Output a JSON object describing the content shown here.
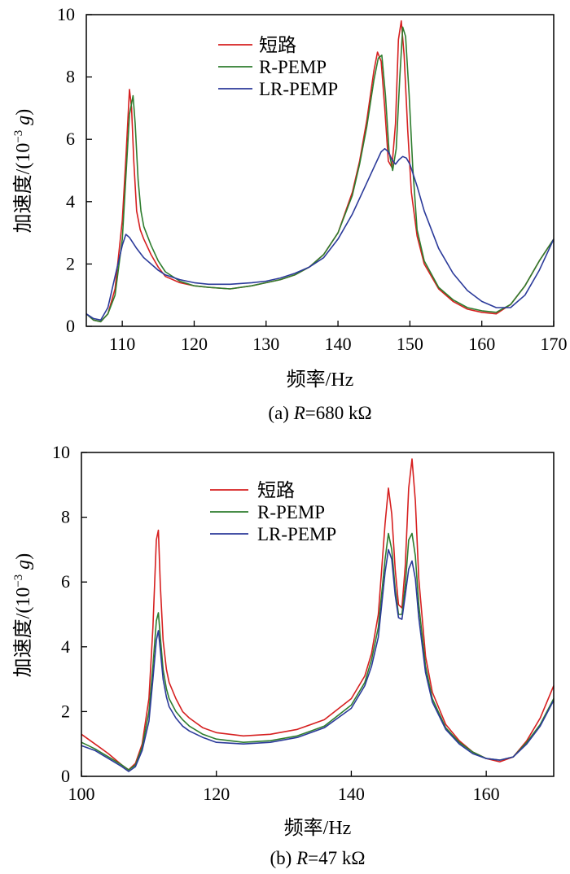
{
  "chart_data": [
    {
      "type": "line",
      "caption_prefix": "(a) ",
      "caption_var": "R",
      "caption_value": "=680 kΩ",
      "xlabel": "频率/Hz",
      "ylabel_main": "加速度/(10",
      "ylabel_exp": "−3",
      "ylabel_var": "g",
      "ylabel_close": ")",
      "xlim": [
        105,
        170
      ],
      "ylim": [
        0,
        10
      ],
      "xticks": [
        110,
        120,
        130,
        140,
        150,
        160,
        170
      ],
      "yticks": [
        0,
        2,
        4,
        6,
        8,
        10
      ],
      "legend_position": "top-center",
      "series": [
        {
          "name": "短路",
          "color": "#d62020",
          "x": [
            105,
            106,
            107,
            108,
            109,
            110,
            110.5,
            111,
            111.3,
            111.6,
            112,
            112.5,
            113,
            114,
            115,
            116,
            118,
            120,
            122,
            125,
            128,
            130,
            132,
            134,
            136,
            138,
            140,
            142,
            143,
            144,
            145,
            145.5,
            146,
            146.5,
            147,
            147.5,
            148,
            148.4,
            148.8,
            149.2,
            149.7,
            150.2,
            151,
            152,
            154,
            156,
            158,
            160,
            162,
            164,
            166,
            168,
            170
          ],
          "y": [
            0.4,
            0.2,
            0.15,
            0.4,
            1.2,
            3.4,
            5.4,
            7.6,
            7.0,
            5.3,
            3.7,
            3.1,
            2.8,
            2.3,
            1.9,
            1.6,
            1.4,
            1.3,
            1.25,
            1.2,
            1.3,
            1.4,
            1.5,
            1.65,
            1.9,
            2.3,
            3.0,
            4.3,
            5.3,
            6.6,
            8.2,
            8.8,
            8.5,
            7.0,
            5.3,
            5.1,
            6.5,
            9.2,
            9.8,
            8.7,
            6.3,
            4.3,
            2.9,
            2.0,
            1.2,
            0.8,
            0.55,
            0.45,
            0.4,
            0.7,
            1.3,
            2.1,
            2.8
          ]
        },
        {
          "name": "R-PEMP",
          "color": "#2e7d2e",
          "x": [
            105,
            106,
            107,
            108,
            109,
            110,
            110.5,
            111,
            111.5,
            111.8,
            112.2,
            112.6,
            113,
            114,
            115,
            116,
            118,
            120,
            122,
            125,
            128,
            130,
            132,
            134,
            136,
            138,
            140,
            142,
            143,
            144,
            145,
            145.6,
            146.1,
            146.6,
            147.1,
            147.6,
            148.1,
            148.6,
            149,
            149.4,
            149.9,
            150.4,
            151,
            152,
            154,
            156,
            158,
            160,
            162,
            164,
            166,
            168,
            170
          ],
          "y": [
            0.4,
            0.2,
            0.15,
            0.4,
            1.0,
            2.8,
            4.8,
            6.8,
            7.4,
            6.5,
            4.7,
            3.7,
            3.2,
            2.6,
            2.1,
            1.75,
            1.45,
            1.3,
            1.25,
            1.2,
            1.3,
            1.4,
            1.5,
            1.65,
            1.9,
            2.3,
            3.0,
            4.2,
            5.2,
            6.4,
            7.9,
            8.6,
            8.7,
            7.4,
            5.6,
            5.0,
            5.7,
            8.0,
            9.6,
            9.3,
            7.4,
            5.1,
            3.1,
            2.1,
            1.25,
            0.85,
            0.6,
            0.5,
            0.45,
            0.7,
            1.3,
            2.1,
            2.8
          ]
        },
        {
          "name": "LR-PEMP",
          "color": "#2b3a9a",
          "x": [
            105,
            106,
            107,
            108,
            109,
            110,
            110.5,
            111,
            112,
            113,
            114,
            115,
            116,
            118,
            120,
            122,
            125,
            128,
            130,
            132,
            134,
            136,
            138,
            140,
            142,
            144,
            145,
            146,
            146.5,
            147,
            147.5,
            148,
            148.5,
            149,
            149.5,
            150,
            151,
            152,
            154,
            156,
            158,
            160,
            162,
            164,
            166,
            168,
            170
          ],
          "y": [
            0.4,
            0.25,
            0.2,
            0.6,
            1.6,
            2.6,
            2.95,
            2.85,
            2.5,
            2.2,
            2.0,
            1.8,
            1.65,
            1.5,
            1.4,
            1.35,
            1.35,
            1.4,
            1.45,
            1.55,
            1.7,
            1.9,
            2.2,
            2.8,
            3.6,
            4.6,
            5.1,
            5.6,
            5.7,
            5.6,
            5.35,
            5.2,
            5.35,
            5.45,
            5.4,
            5.2,
            4.5,
            3.7,
            2.5,
            1.7,
            1.15,
            0.8,
            0.6,
            0.6,
            1.0,
            1.8,
            2.8
          ]
        }
      ]
    },
    {
      "type": "line",
      "caption_prefix": "(b) ",
      "caption_var": "R",
      "caption_value": "=47 kΩ",
      "xlabel": "频率/Hz",
      "ylabel_main": "加速度/(10",
      "ylabel_exp": "−3",
      "ylabel_var": "g",
      "ylabel_close": ")",
      "xlim": [
        100,
        170
      ],
      "ylim": [
        0,
        10
      ],
      "xticks": [
        100,
        120,
        140,
        160
      ],
      "yticks": [
        0,
        2,
        4,
        6,
        8,
        10
      ],
      "legend_position": "top-center",
      "series": [
        {
          "name": "短路",
          "color": "#d62020",
          "x": [
            100,
            102,
            104,
            106,
            107,
            108,
            109,
            110,
            110.6,
            111.1,
            111.4,
            111.7,
            112.1,
            112.6,
            113,
            114,
            115,
            116,
            118,
            120,
            124,
            128,
            132,
            136,
            140,
            142,
            143,
            144,
            145,
            145.5,
            146,
            146.5,
            147,
            147.5,
            148,
            148.5,
            149,
            149.5,
            150,
            151,
            152,
            154,
            156,
            158,
            160,
            162,
            164,
            166,
            168,
            170
          ],
          "y": [
            1.3,
            1.0,
            0.7,
            0.35,
            0.2,
            0.4,
            1.0,
            2.4,
            4.6,
            7.3,
            7.6,
            5.9,
            4.2,
            3.3,
            2.9,
            2.4,
            2.0,
            1.8,
            1.5,
            1.35,
            1.25,
            1.3,
            1.45,
            1.75,
            2.4,
            3.1,
            3.8,
            5.0,
            7.8,
            8.9,
            8.1,
            6.4,
            5.3,
            5.2,
            6.5,
            8.9,
            9.8,
            8.5,
            6.1,
            3.7,
            2.6,
            1.6,
            1.1,
            0.75,
            0.55,
            0.45,
            0.6,
            1.1,
            1.8,
            2.8
          ]
        },
        {
          "name": "R-PEMP",
          "color": "#2e7d2e",
          "x": [
            100,
            102,
            104,
            106,
            107,
            108,
            109,
            110,
            110.6,
            111.1,
            111.4,
            111.7,
            112.1,
            112.6,
            113,
            114,
            115,
            116,
            118,
            120,
            124,
            128,
            132,
            136,
            140,
            142,
            143,
            144,
            145,
            145.5,
            146,
            146.5,
            147,
            147.5,
            148,
            148.5,
            149,
            149.5,
            150,
            151,
            152,
            154,
            156,
            158,
            160,
            162,
            164,
            166,
            168,
            170
          ],
          "y": [
            1.05,
            0.85,
            0.6,
            0.35,
            0.2,
            0.35,
            0.9,
            2.0,
            3.4,
            4.8,
            5.05,
            4.3,
            3.3,
            2.7,
            2.4,
            2.0,
            1.75,
            1.55,
            1.3,
            1.15,
            1.05,
            1.1,
            1.25,
            1.55,
            2.2,
            2.9,
            3.6,
            4.6,
            6.7,
            7.5,
            7.0,
            5.8,
            5.0,
            5.0,
            5.9,
            7.3,
            7.5,
            6.8,
            5.3,
            3.4,
            2.4,
            1.5,
            1.05,
            0.75,
            0.55,
            0.5,
            0.6,
            1.05,
            1.6,
            2.4
          ]
        },
        {
          "name": "LR-PEMP",
          "color": "#2b3a9a",
          "x": [
            100,
            102,
            104,
            106,
            107,
            108,
            109,
            110,
            110.6,
            111.1,
            111.4,
            111.7,
            112.1,
            112.6,
            113,
            114,
            115,
            116,
            118,
            120,
            124,
            128,
            132,
            136,
            140,
            142,
            143,
            144,
            145,
            145.5,
            146,
            146.5,
            147,
            147.5,
            148,
            148.5,
            149,
            149.5,
            150,
            151,
            152,
            154,
            156,
            158,
            160,
            162,
            164,
            166,
            168,
            170
          ],
          "y": [
            0.95,
            0.8,
            0.55,
            0.3,
            0.15,
            0.3,
            0.8,
            1.7,
            3.0,
            4.2,
            4.5,
            3.9,
            3.0,
            2.45,
            2.15,
            1.8,
            1.55,
            1.4,
            1.2,
            1.05,
            1.0,
            1.05,
            1.2,
            1.5,
            2.1,
            2.8,
            3.4,
            4.3,
            6.3,
            7.0,
            6.7,
            5.6,
            4.9,
            4.85,
            5.6,
            6.4,
            6.65,
            6.1,
            4.9,
            3.2,
            2.3,
            1.45,
            1.0,
            0.7,
            0.55,
            0.5,
            0.6,
            1.0,
            1.55,
            2.35
          ]
        }
      ]
    }
  ]
}
